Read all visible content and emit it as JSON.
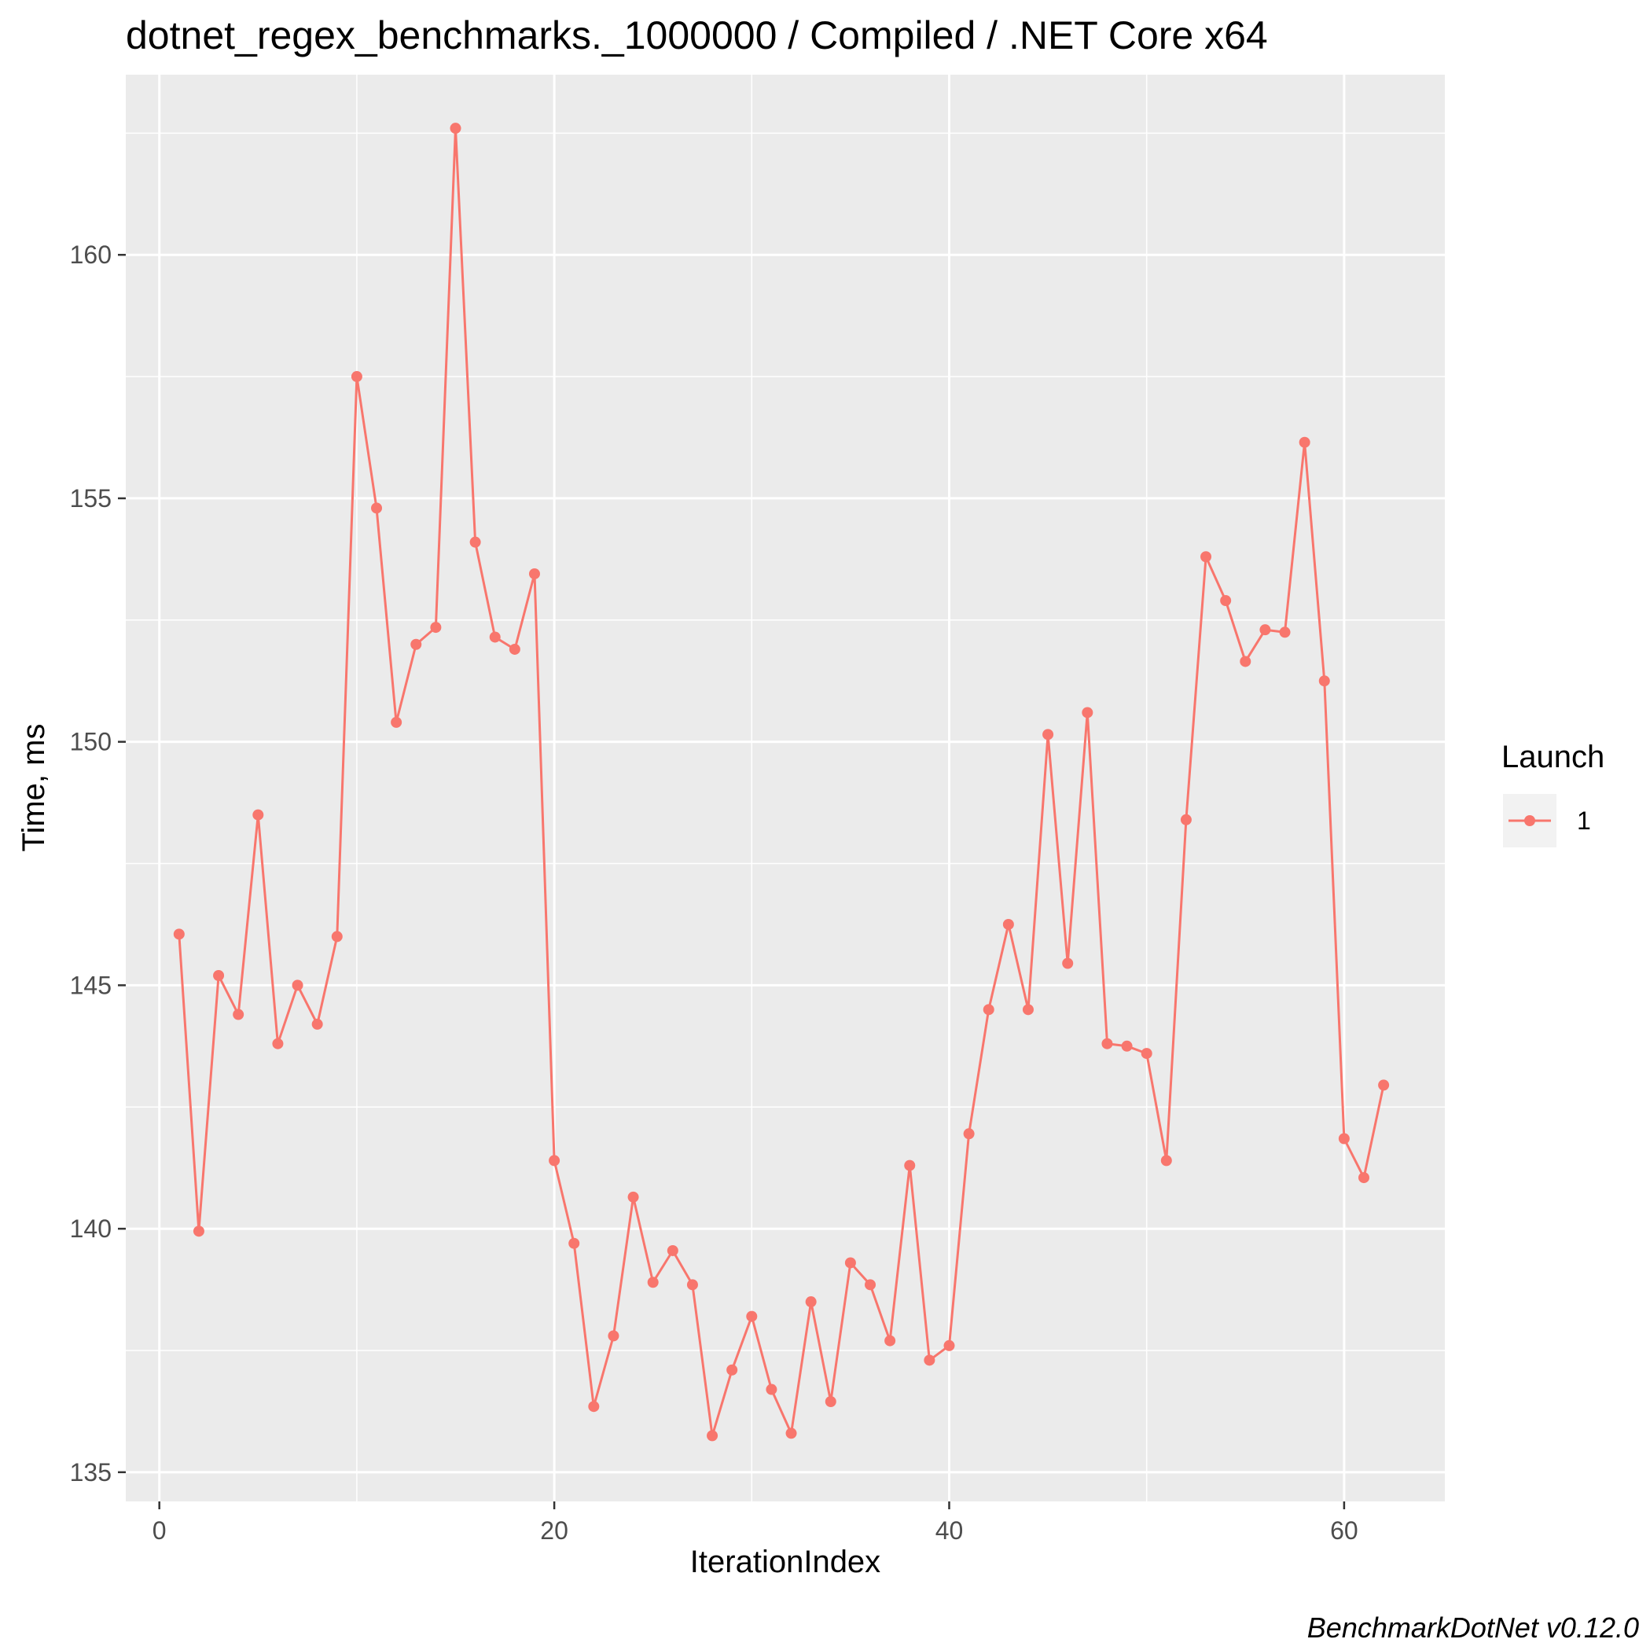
{
  "chart_data": {
    "type": "line",
    "title": "dotnet_regex_benchmarks._1000000 / Compiled / .NET Core x64",
    "xlabel": "IterationIndex",
    "ylabel": "Time, ms",
    "xlim": [
      -1.7,
      65.1
    ],
    "ylim": [
      134.4,
      163.7
    ],
    "x_ticks": [
      0,
      20,
      40,
      60
    ],
    "y_ticks": [
      135,
      140,
      145,
      150,
      155,
      160
    ],
    "grid": true,
    "legend": {
      "title": "Launch",
      "position": "right"
    },
    "caption": "BenchmarkDotNet v0.12.0",
    "series": [
      {
        "name": "1",
        "color": "#f8766d",
        "x": [
          1,
          2,
          3,
          4,
          5,
          6,
          7,
          8,
          9,
          10,
          11,
          12,
          13,
          14,
          15,
          16,
          17,
          18,
          19,
          20,
          21,
          22,
          23,
          24,
          25,
          26,
          27,
          28,
          29,
          30,
          31,
          32,
          33,
          34,
          35,
          36,
          37,
          38,
          39,
          40,
          41,
          42,
          43,
          44,
          45,
          46,
          47,
          48,
          49,
          50,
          51,
          52,
          53,
          54,
          55,
          56,
          57,
          58,
          59,
          60,
          61,
          62
        ],
        "values": [
          146.05,
          139.95,
          145.2,
          144.4,
          148.5,
          143.8,
          145.0,
          144.2,
          146.0,
          157.5,
          154.8,
          150.4,
          152.0,
          152.35,
          162.6,
          154.1,
          152.15,
          151.9,
          153.45,
          141.4,
          139.7,
          136.35,
          137.8,
          140.65,
          138.9,
          139.55,
          138.85,
          135.75,
          137.1,
          138.2,
          136.7,
          135.8,
          138.5,
          136.45,
          139.3,
          138.85,
          137.7,
          141.3,
          137.3,
          137.6,
          141.95,
          144.5,
          146.25,
          144.5,
          150.15,
          145.45,
          150.6,
          143.8,
          143.75,
          143.6,
          141.4,
          148.4,
          153.8,
          152.9,
          151.65,
          152.3,
          152.25,
          156.15,
          151.25,
          141.85,
          141.05,
          142.95
        ]
      }
    ]
  }
}
